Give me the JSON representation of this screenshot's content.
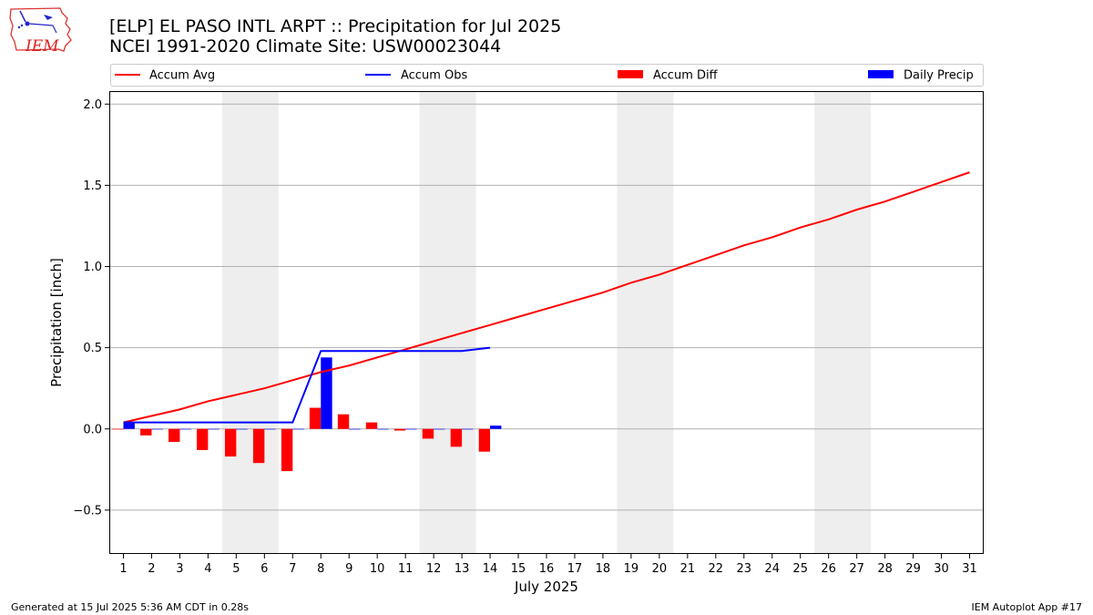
{
  "header": {
    "title": "[ELP] EL PASO INTL ARPT :: Precipitation for Jul 2025",
    "subtitle": "NCEI 1991-2020 Climate Site: USW00023044"
  },
  "logo": {
    "text": "IEM",
    "icon": "iowa-state-outline-icon"
  },
  "footer": {
    "left": "Generated at 15 Jul 2025 5:36 AM CDT in 0.28s",
    "right": "IEM Autoplot App #17"
  },
  "chart_data": {
    "type": "bar",
    "xlabel": "July 2025",
    "ylabel": "Precipitation [inch]",
    "xlim": [
      0.5,
      31.5
    ],
    "ylim": [
      -0.77,
      2.08
    ],
    "x_ticks": [
      1,
      2,
      3,
      4,
      5,
      6,
      7,
      8,
      9,
      10,
      11,
      12,
      13,
      14,
      15,
      16,
      17,
      18,
      19,
      20,
      21,
      22,
      23,
      24,
      25,
      26,
      27,
      28,
      29,
      30,
      31
    ],
    "y_ticks": [
      -0.5,
      0.0,
      0.5,
      1.0,
      1.5,
      2.0
    ],
    "y_tick_labels": [
      "−0.5",
      "0.0",
      "0.5",
      "1.0",
      "1.5",
      "2.0"
    ],
    "grid": "horizontal",
    "legend_position": "top",
    "weekend_shading": [
      [
        4.5,
        6.5
      ],
      [
        11.5,
        13.5
      ],
      [
        18.5,
        20.5
      ],
      [
        25.5,
        27.5
      ]
    ],
    "colors": {
      "avg": "#ff0000",
      "obs": "#0000ff",
      "diff": "#ff0000",
      "daily": "#0000ff",
      "shade": "#eeeeee"
    },
    "series": [
      {
        "name": "Accum Avg",
        "kind": "line",
        "x": [
          1,
          2,
          3,
          4,
          5,
          6,
          7,
          8,
          9,
          10,
          11,
          12,
          13,
          14,
          15,
          16,
          17,
          18,
          19,
          20,
          21,
          22,
          23,
          24,
          25,
          26,
          27,
          28,
          29,
          30,
          31
        ],
        "values": [
          0.04,
          0.08,
          0.12,
          0.17,
          0.21,
          0.25,
          0.3,
          0.35,
          0.39,
          0.44,
          0.49,
          0.54,
          0.59,
          0.64,
          0.69,
          0.74,
          0.79,
          0.84,
          0.9,
          0.95,
          1.01,
          1.07,
          1.13,
          1.18,
          1.24,
          1.29,
          1.35,
          1.4,
          1.46,
          1.52,
          1.58
        ]
      },
      {
        "name": "Accum Obs",
        "kind": "line",
        "x": [
          1,
          2,
          3,
          4,
          5,
          6,
          7,
          8,
          9,
          10,
          11,
          12,
          13,
          14
        ],
        "values": [
          0.04,
          0.04,
          0.04,
          0.04,
          0.04,
          0.04,
          0.04,
          0.48,
          0.48,
          0.48,
          0.48,
          0.48,
          0.48,
          0.5
        ]
      },
      {
        "name": "Accum Diff",
        "kind": "bar",
        "offset": -0.2,
        "x": [
          1,
          2,
          3,
          4,
          5,
          6,
          7,
          8,
          9,
          10,
          11,
          12,
          13,
          14
        ],
        "values": [
          0.0,
          -0.04,
          -0.08,
          -0.13,
          -0.17,
          -0.21,
          -0.26,
          0.13,
          0.09,
          0.04,
          -0.01,
          -0.06,
          -0.11,
          -0.14
        ]
      },
      {
        "name": "Daily Precip",
        "kind": "bar",
        "offset": 0.2,
        "x": [
          1,
          2,
          3,
          4,
          5,
          6,
          7,
          8,
          9,
          10,
          11,
          12,
          13,
          14
        ],
        "values": [
          0.04,
          0,
          0,
          0,
          0,
          0,
          0,
          0.44,
          0,
          0,
          0,
          0,
          0,
          0.02
        ]
      }
    ]
  }
}
